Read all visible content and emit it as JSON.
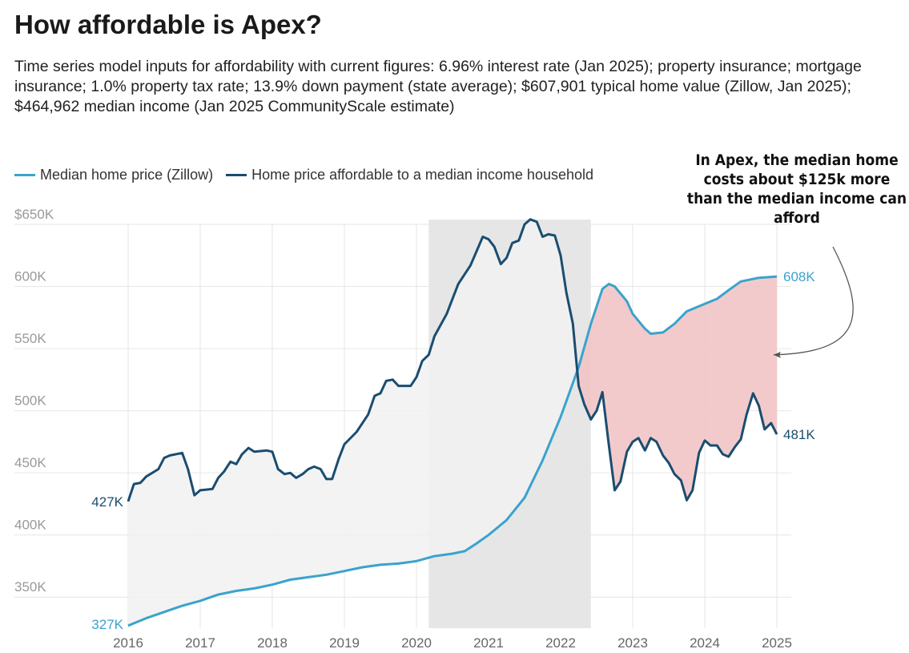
{
  "title": "How affordable is Apex?",
  "subtitle": "Time series model inputs for affordability with current figures: 6.96% interest rate (Jan 2025); property insurance; mortgage insurance; 1.0% property tax rate; 13.9% down payment (state average); $607,901 typical home value (Zillow, Jan 2025); $464,962 median income (Jan 2025 CommunityScale estimate)",
  "annotation": "In Apex, the median home costs about $125k more than the median income can afford",
  "colors": {
    "median": "#3aa3cc",
    "affordable": "#1a4d70",
    "gap_fill": "#f2c4c5",
    "shade_fill": "#f1f1f1",
    "highlight_band": "#e6e6e6",
    "grid": "#e6e6e6"
  },
  "chart_data": {
    "type": "line",
    "ylim": [
      325000,
      650000
    ],
    "xlim": [
      2016,
      2025
    ],
    "y_ticks": [
      {
        "value": 350000,
        "label": "350K"
      },
      {
        "value": 400000,
        "label": "400K"
      },
      {
        "value": 450000,
        "label": "450K"
      },
      {
        "value": 500000,
        "label": "500K"
      },
      {
        "value": 550000,
        "label": "550K"
      },
      {
        "value": 600000,
        "label": "600K"
      },
      {
        "value": 650000,
        "label": "$650K"
      }
    ],
    "x_ticks": [
      {
        "value": 2016,
        "label": "2016"
      },
      {
        "value": 2017,
        "label": "2017"
      },
      {
        "value": 2018,
        "label": "2018"
      },
      {
        "value": 2019,
        "label": "2019"
      },
      {
        "value": 2020,
        "label": "2020"
      },
      {
        "value": 2021,
        "label": "2021"
      },
      {
        "value": 2022,
        "label": "2022"
      },
      {
        "value": 2023,
        "label": "2023"
      },
      {
        "value": 2024,
        "label": "2024"
      },
      {
        "value": 2025,
        "label": "2025"
      }
    ],
    "highlight_band": [
      2020.17,
      2022.42
    ],
    "end_labels": {
      "median_start": "327K",
      "median_end": "608K",
      "affordable_start": "427K",
      "affordable_end": "481K"
    },
    "series": [
      {
        "name": "Median home price (Zillow)",
        "key": "median",
        "points": [
          [
            2016.0,
            327000
          ],
          [
            2016.25,
            333000
          ],
          [
            2016.5,
            338000
          ],
          [
            2016.75,
            343000
          ],
          [
            2017.0,
            347000
          ],
          [
            2017.25,
            352000
          ],
          [
            2017.5,
            355000
          ],
          [
            2017.75,
            357000
          ],
          [
            2018.0,
            360000
          ],
          [
            2018.25,
            364000
          ],
          [
            2018.5,
            366000
          ],
          [
            2018.75,
            368000
          ],
          [
            2019.0,
            371000
          ],
          [
            2019.25,
            374000
          ],
          [
            2019.5,
            376000
          ],
          [
            2019.75,
            377000
          ],
          [
            2020.0,
            379000
          ],
          [
            2020.25,
            383000
          ],
          [
            2020.5,
            385000
          ],
          [
            2020.67,
            387000
          ],
          [
            2020.83,
            393000
          ],
          [
            2021.0,
            400000
          ],
          [
            2021.25,
            412000
          ],
          [
            2021.5,
            430000
          ],
          [
            2021.75,
            460000
          ],
          [
            2022.0,
            495000
          ],
          [
            2022.25,
            535000
          ],
          [
            2022.42,
            570000
          ],
          [
            2022.58,
            598000
          ],
          [
            2022.67,
            602000
          ],
          [
            2022.75,
            600000
          ],
          [
            2022.92,
            588000
          ],
          [
            2023.0,
            578000
          ],
          [
            2023.17,
            566000
          ],
          [
            2023.25,
            562000
          ],
          [
            2023.42,
            563000
          ],
          [
            2023.58,
            570000
          ],
          [
            2023.75,
            580000
          ],
          [
            2024.0,
            586000
          ],
          [
            2024.17,
            590000
          ],
          [
            2024.33,
            597000
          ],
          [
            2024.5,
            604000
          ],
          [
            2024.75,
            607000
          ],
          [
            2025.0,
            608000
          ]
        ]
      },
      {
        "name": "Home price affordable to a median income household",
        "key": "affordable",
        "points": [
          [
            2016.0,
            427000
          ],
          [
            2016.08,
            441000
          ],
          [
            2016.17,
            442000
          ],
          [
            2016.25,
            447000
          ],
          [
            2016.42,
            453000
          ],
          [
            2016.5,
            462000
          ],
          [
            2016.58,
            464000
          ],
          [
            2016.75,
            466000
          ],
          [
            2016.83,
            453000
          ],
          [
            2016.92,
            432000
          ],
          [
            2017.0,
            436000
          ],
          [
            2017.17,
            437000
          ],
          [
            2017.25,
            446000
          ],
          [
            2017.33,
            451000
          ],
          [
            2017.42,
            459000
          ],
          [
            2017.5,
            457000
          ],
          [
            2017.58,
            465000
          ],
          [
            2017.67,
            470000
          ],
          [
            2017.75,
            467000
          ],
          [
            2017.92,
            468000
          ],
          [
            2018.0,
            467000
          ],
          [
            2018.08,
            453000
          ],
          [
            2018.17,
            449000
          ],
          [
            2018.25,
            450000
          ],
          [
            2018.33,
            446000
          ],
          [
            2018.42,
            449000
          ],
          [
            2018.5,
            453000
          ],
          [
            2018.58,
            455000
          ],
          [
            2018.67,
            453000
          ],
          [
            2018.75,
            445000
          ],
          [
            2018.83,
            445000
          ],
          [
            2018.92,
            461000
          ],
          [
            2019.0,
            473000
          ],
          [
            2019.17,
            483000
          ],
          [
            2019.33,
            497000
          ],
          [
            2019.42,
            512000
          ],
          [
            2019.5,
            514000
          ],
          [
            2019.58,
            524000
          ],
          [
            2019.67,
            525000
          ],
          [
            2019.75,
            520000
          ],
          [
            2019.92,
            520000
          ],
          [
            2020.0,
            527000
          ],
          [
            2020.08,
            540000
          ],
          [
            2020.17,
            545000
          ],
          [
            2020.25,
            560000
          ],
          [
            2020.42,
            578000
          ],
          [
            2020.5,
            590000
          ],
          [
            2020.58,
            602000
          ],
          [
            2020.75,
            617000
          ],
          [
            2020.92,
            640000
          ],
          [
            2021.0,
            638000
          ],
          [
            2021.08,
            632000
          ],
          [
            2021.17,
            618000
          ],
          [
            2021.25,
            623000
          ],
          [
            2021.33,
            635000
          ],
          [
            2021.42,
            637000
          ],
          [
            2021.5,
            650000
          ],
          [
            2021.58,
            654000
          ],
          [
            2021.67,
            652000
          ],
          [
            2021.75,
            640000
          ],
          [
            2021.83,
            642000
          ],
          [
            2021.92,
            641000
          ],
          [
            2022.0,
            625000
          ],
          [
            2022.08,
            595000
          ],
          [
            2022.17,
            570000
          ],
          [
            2022.25,
            520000
          ],
          [
            2022.33,
            505000
          ],
          [
            2022.42,
            493000
          ],
          [
            2022.5,
            500000
          ],
          [
            2022.58,
            515000
          ],
          [
            2022.67,
            472000
          ],
          [
            2022.75,
            436000
          ],
          [
            2022.83,
            443000
          ],
          [
            2022.92,
            467000
          ],
          [
            2023.0,
            475000
          ],
          [
            2023.08,
            478000
          ],
          [
            2023.17,
            468000
          ],
          [
            2023.25,
            478000
          ],
          [
            2023.33,
            475000
          ],
          [
            2023.42,
            464000
          ],
          [
            2023.5,
            458000
          ],
          [
            2023.58,
            449000
          ],
          [
            2023.67,
            444000
          ],
          [
            2023.75,
            428000
          ],
          [
            2023.83,
            436000
          ],
          [
            2023.92,
            466000
          ],
          [
            2024.0,
            476000
          ],
          [
            2024.08,
            472000
          ],
          [
            2024.17,
            472000
          ],
          [
            2024.25,
            465000
          ],
          [
            2024.33,
            463000
          ],
          [
            2024.42,
            471000
          ],
          [
            2024.5,
            477000
          ],
          [
            2024.58,
            497000
          ],
          [
            2024.67,
            514000
          ],
          [
            2024.75,
            504000
          ],
          [
            2024.83,
            485000
          ],
          [
            2024.92,
            490000
          ],
          [
            2025.0,
            481000
          ]
        ]
      }
    ]
  }
}
